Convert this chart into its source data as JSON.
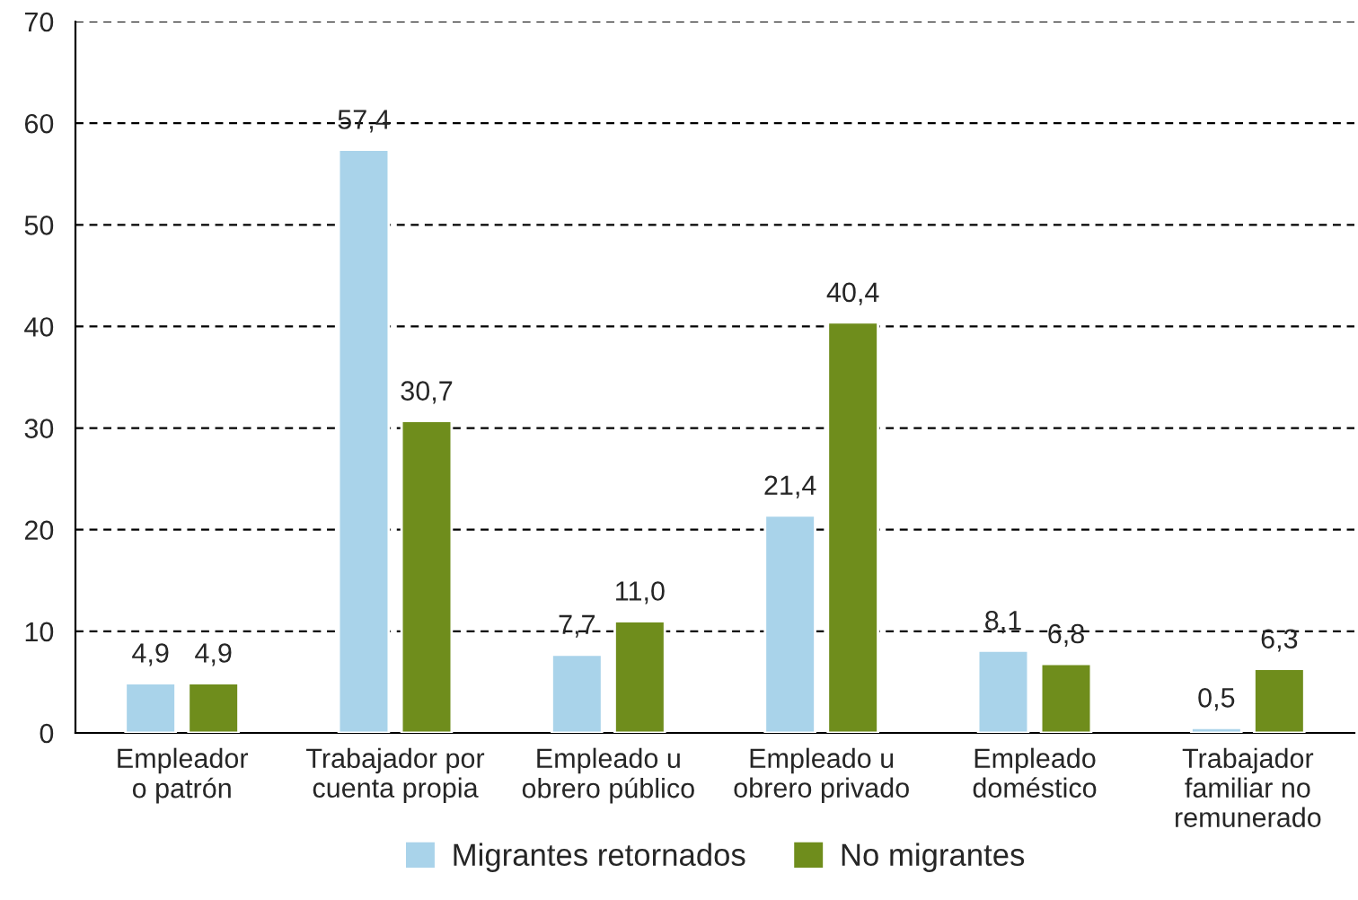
{
  "chart_data": {
    "type": "bar",
    "categories": [
      "Empleador\no patrón",
      "Trabajador por\ncuenta propia",
      "Empleado u\nobrero público",
      "Empleado u\nobrero privado",
      "Empleado\ndoméstico",
      "Trabajador\nfamiliar no\nremunerado"
    ],
    "series": [
      {
        "name": "Migrantes retornados",
        "color": "#a9d3ea",
        "values": [
          4.9,
          57.4,
          7.7,
          21.4,
          8.1,
          0.5
        ],
        "value_labels": [
          "4,9",
          "57,4",
          "7,7",
          "21,4",
          "8,1",
          "0,5"
        ]
      },
      {
        "name": "No migrantes",
        "color": "#6f8d1c",
        "values": [
          4.9,
          30.7,
          11.0,
          40.4,
          6.8,
          6.3
        ],
        "value_labels": [
          "4,9",
          "30,7",
          "11,0",
          "40,4",
          "6,8",
          "6,3"
        ]
      }
    ],
    "ylim": [
      0,
      70
    ],
    "yticks": [
      0,
      10,
      20,
      30,
      40,
      50,
      60,
      70
    ],
    "grid": "y",
    "legend": "bottom"
  }
}
